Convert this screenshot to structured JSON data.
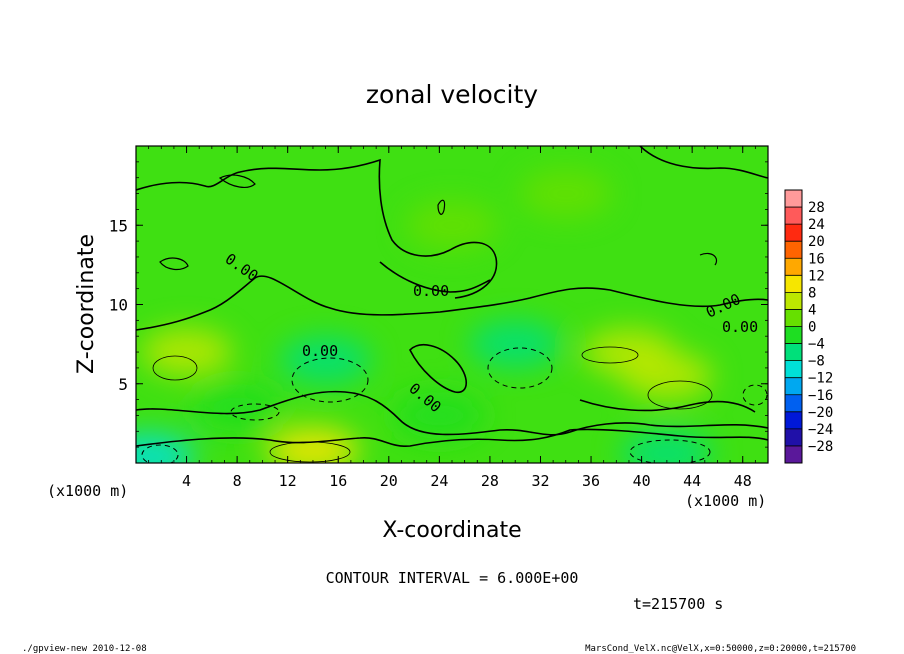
{
  "chart_data": {
    "type": "heatmap",
    "title": "zonal velocity",
    "xlabel": "X-coordinate",
    "ylabel": "Z-coordinate",
    "x_unit_label": "(x1000 m)",
    "y_unit_label": "(x1000 m)",
    "xlim": [
      0,
      50
    ],
    "ylim": [
      0,
      20
    ],
    "x_ticks": [
      4,
      8,
      12,
      16,
      20,
      24,
      28,
      32,
      36,
      40,
      44,
      48
    ],
    "y_ticks": [
      5,
      10,
      15
    ],
    "contour_interval_text": "CONTOUR INTERVAL = 6.000E+00",
    "contour_label": "0.00",
    "time_text": "t=215700 s",
    "colorbar": {
      "ticks": [
        28,
        24,
        20,
        16,
        12,
        8,
        4,
        0,
        -4,
        -8,
        -12,
        -16,
        -20,
        -24,
        -28
      ],
      "levels": [
        {
          "from": 28,
          "to": 32,
          "color": "#ff9a9a"
        },
        {
          "from": 24,
          "to": 28,
          "color": "#ff5a5a"
        },
        {
          "from": 20,
          "to": 24,
          "color": "#ff2a10"
        },
        {
          "from": 16,
          "to": 20,
          "color": "#ff6400"
        },
        {
          "from": 12,
          "to": 16,
          "color": "#ffa800"
        },
        {
          "from": 8,
          "to": 12,
          "color": "#f6e600"
        },
        {
          "from": 4,
          "to": 8,
          "color": "#bde700"
        },
        {
          "from": 0,
          "to": 4,
          "color": "#66e000"
        },
        {
          "from": -4,
          "to": 0,
          "color": "#1ede22"
        },
        {
          "from": -8,
          "to": -4,
          "color": "#00e07a"
        },
        {
          "from": -12,
          "to": -8,
          "color": "#00e0d8"
        },
        {
          "from": -16,
          "to": -12,
          "color": "#00a8f0"
        },
        {
          "from": -20,
          "to": -16,
          "color": "#0060f0"
        },
        {
          "from": -24,
          "to": -20,
          "color": "#0018d8"
        },
        {
          "from": -28,
          "to": -24,
          "color": "#2010a8"
        },
        {
          "from": -32,
          "to": -28,
          "color": "#5a189a"
        }
      ]
    },
    "field_features": [
      {
        "x": 25,
        "z": 15,
        "value": 1
      },
      {
        "x": 34,
        "z": 17,
        "value": 2
      },
      {
        "x": 15,
        "z": 6.5,
        "value": -8
      },
      {
        "x": 30,
        "z": 7.5,
        "value": -7
      },
      {
        "x": 14,
        "z": 0.8,
        "value": 9
      },
      {
        "x": 1,
        "z": 0.4,
        "value": -10
      },
      {
        "x": 42,
        "z": 0.6,
        "value": -8
      },
      {
        "x": 42,
        "z": 5.5,
        "value": 7
      },
      {
        "x": 39,
        "z": 7,
        "value": 6
      },
      {
        "x": 4,
        "z": 7,
        "value": 6
      },
      {
        "x": 8,
        "z": 3.5,
        "value": -4
      },
      {
        "x": 24,
        "z": 3,
        "value": -3
      }
    ]
  },
  "footer": {
    "left": "./gpview-new  2010-12-08",
    "right": "MarsCond_VelX.nc@VelX,x=0:50000,z=0:20000,t=215700"
  }
}
